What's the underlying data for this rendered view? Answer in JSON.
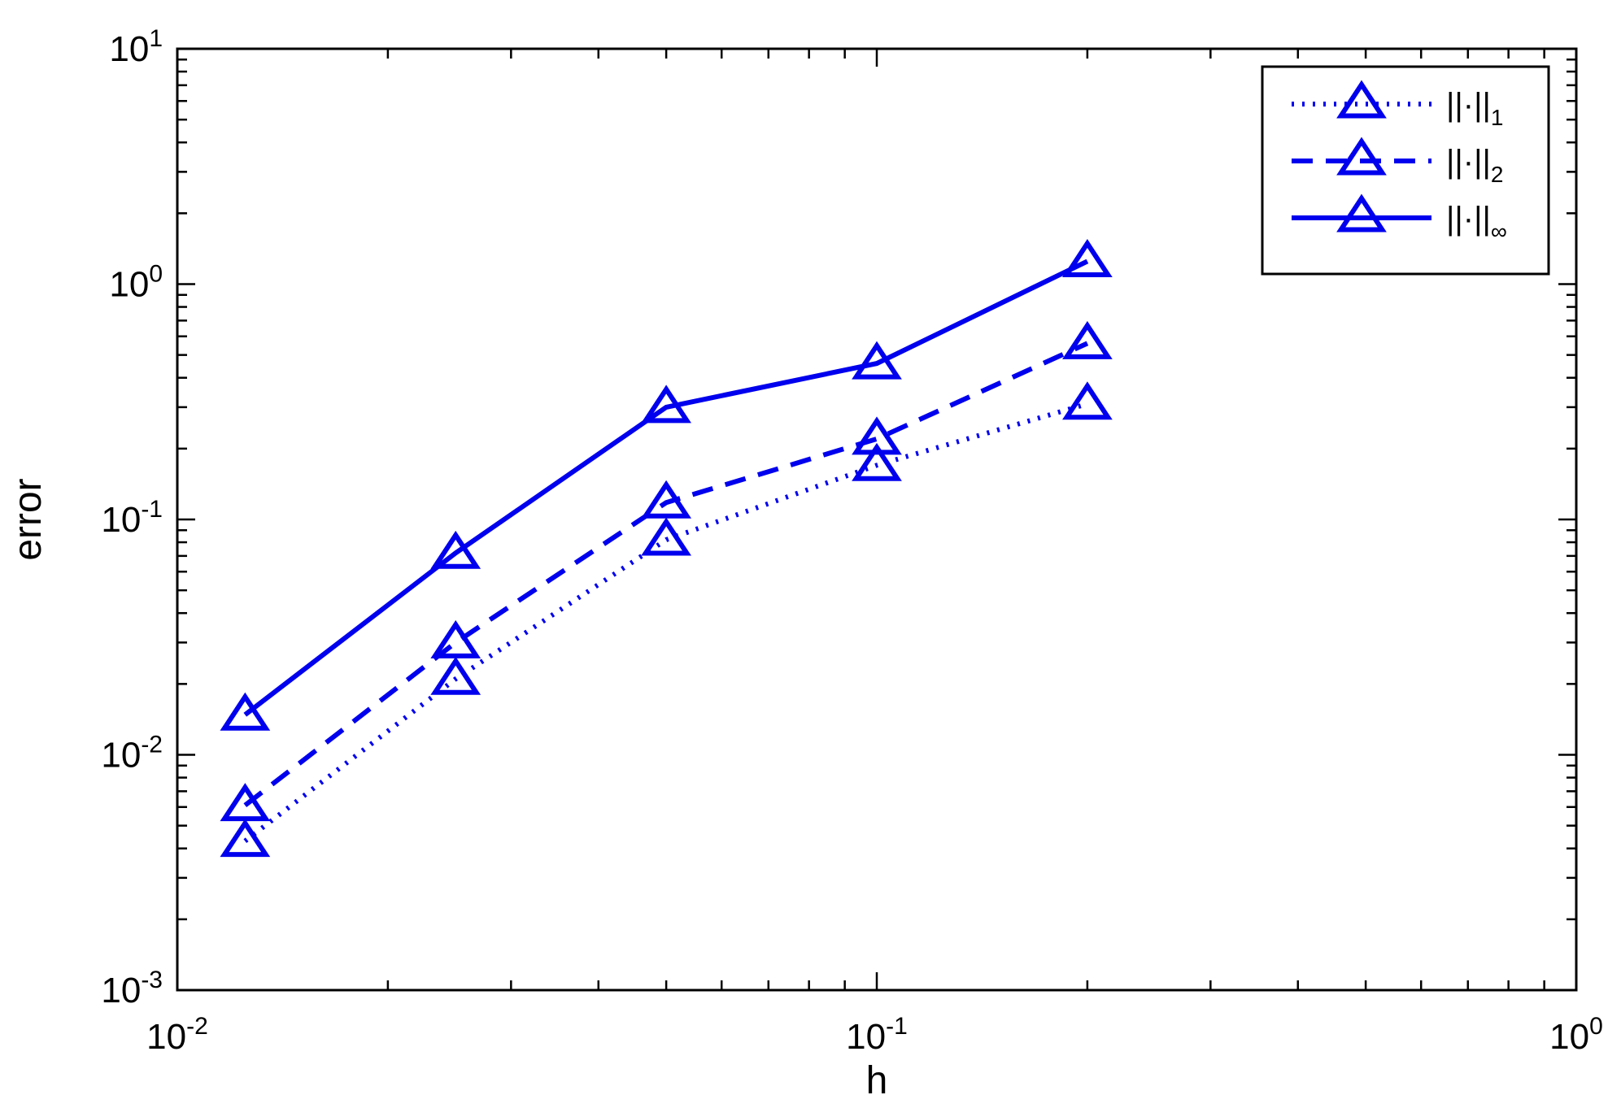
{
  "chart_data": {
    "type": "line",
    "title": "",
    "xlabel": "h",
    "ylabel": "error",
    "x_scale": "log",
    "y_scale": "log",
    "xlim": [
      0.01,
      1
    ],
    "ylim": [
      0.001,
      10
    ],
    "x_ticks": [
      {
        "base": "10",
        "exp": "-2",
        "value": 0.01
      },
      {
        "base": "10",
        "exp": "-1",
        "value": 0.1
      },
      {
        "base": "10",
        "exp": "0",
        "value": 1
      }
    ],
    "y_ticks": [
      {
        "base": "10",
        "exp": "-3",
        "value": 0.001
      },
      {
        "base": "10",
        "exp": "-2",
        "value": 0.01
      },
      {
        "base": "10",
        "exp": "-1",
        "value": 0.1
      },
      {
        "base": "10",
        "exp": "0",
        "value": 1
      },
      {
        "base": "10",
        "exp": "1",
        "value": 10
      }
    ],
    "grid": false,
    "legend_position": "top-right",
    "marker": "triangle",
    "color": "#0000ee",
    "x": [
      0.0125,
      0.025,
      0.05,
      0.1,
      0.2
    ],
    "series": [
      {
        "name": "||·||",
        "sub": "1",
        "style": "dotted",
        "values": [
          0.0043,
          0.021,
          0.082,
          0.17,
          0.31
        ]
      },
      {
        "name": "||·||",
        "sub": "2",
        "style": "dashed",
        "values": [
          0.0061,
          0.03,
          0.118,
          0.22,
          0.56
        ]
      },
      {
        "name": "||·||",
        "sub": "∞",
        "style": "solid",
        "values": [
          0.0148,
          0.072,
          0.3,
          0.46,
          1.25
        ]
      }
    ]
  }
}
